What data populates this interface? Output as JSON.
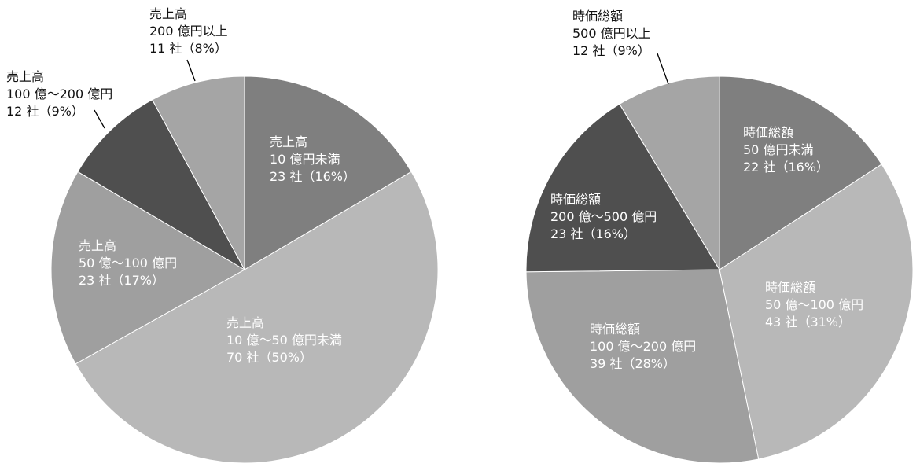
{
  "chart_data": [
    {
      "type": "pie",
      "start": "top, clockwise",
      "slices": [
        {
          "lines": [
            "売上高",
            "10 億円未満",
            "23 社（16%）"
          ],
          "value": 23,
          "percent": 16,
          "color": "#7f7f7f",
          "label_color": "#ffffff"
        },
        {
          "lines": [
            "売上高",
            "10 億～50 億円未満",
            "70 社（50%）"
          ],
          "value": 70,
          "percent": 50,
          "color": "#b8b8b8",
          "label_color": "#ffffff"
        },
        {
          "lines": [
            "売上高",
            "50 億～100 億円",
            "23 社（17%）"
          ],
          "value": 23,
          "percent": 17,
          "color": "#9f9f9f",
          "label_color": "#ffffff"
        },
        {
          "lines": [
            "売上高",
            "100 億～200 億円",
            "12 社（9%）"
          ],
          "value": 12,
          "percent": 9,
          "color": "#4f4f4f",
          "label_color": "#111111"
        },
        {
          "lines": [
            "売上高",
            "200 億円以上",
            "11 社（8%）"
          ],
          "value": 11,
          "percent": 8,
          "color": "#a5a5a5",
          "label_color": "#111111"
        }
      ]
    },
    {
      "type": "pie",
      "start": "top, clockwise",
      "slices": [
        {
          "lines": [
            "時価総額",
            "50 億円未満",
            "22 社（16%）"
          ],
          "value": 22,
          "percent": 16,
          "color": "#7f7f7f",
          "label_color": "#ffffff"
        },
        {
          "lines": [
            "時価総額",
            "50 億～100 億円",
            "43 社（31%）"
          ],
          "value": 43,
          "percent": 31,
          "color": "#b8b8b8",
          "label_color": "#ffffff"
        },
        {
          "lines": [
            "時価総額",
            "100 億～200 億円",
            "39 社（28%）"
          ],
          "value": 39,
          "percent": 28,
          "color": "#9f9f9f",
          "label_color": "#ffffff"
        },
        {
          "lines": [
            "時価総額",
            "200 億～500 億円",
            "23 社（16%）"
          ],
          "value": 23,
          "percent": 16,
          "color": "#4f4f4f",
          "label_color": "#ffffff"
        },
        {
          "lines": [
            "時価総額",
            "500 億円以上",
            "12 社（9%）"
          ],
          "value": 12,
          "percent": 9,
          "color": "#a5a5a5",
          "label_color": "#111111"
        }
      ]
    }
  ]
}
